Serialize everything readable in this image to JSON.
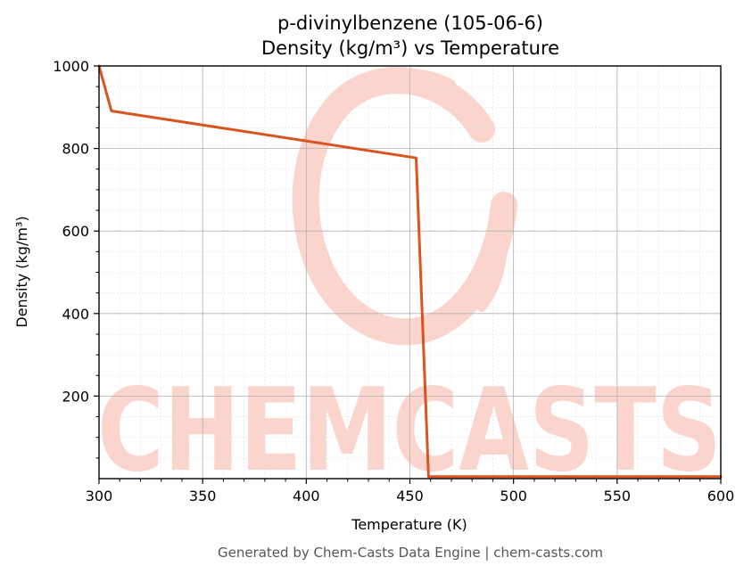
{
  "colors": {
    "series": "#d9541e",
    "watermark": "#fbd5cd",
    "grid_major": "#b0b0b0",
    "grid_minor": "#e2e2e2",
    "footer": "#555555"
  },
  "watermark": {
    "text": "CHEMCASTS"
  },
  "footer": {
    "text": "Generated by Chem-Casts Data Engine | chem-casts.com"
  },
  "chart_data": {
    "type": "line",
    "title": [
      "p-divinylbenzene (105-06-6)",
      "Density (kg/m³) vs Temperature"
    ],
    "xlabel": "Temperature (K)",
    "ylabel": "Density (kg/m³)",
    "xlim": [
      300,
      600
    ],
    "ylim": [
      0,
      1000
    ],
    "xticks": [
      300,
      350,
      400,
      450,
      500,
      550,
      600
    ],
    "yticks": [
      200,
      400,
      600,
      800,
      1000
    ],
    "grid": true,
    "minor_grid": true,
    "legend": "none",
    "series": [
      {
        "x": [
          300,
          306,
          453,
          459,
          600
        ],
        "y": [
          1000,
          891,
          777,
          5,
          5
        ]
      }
    ]
  }
}
